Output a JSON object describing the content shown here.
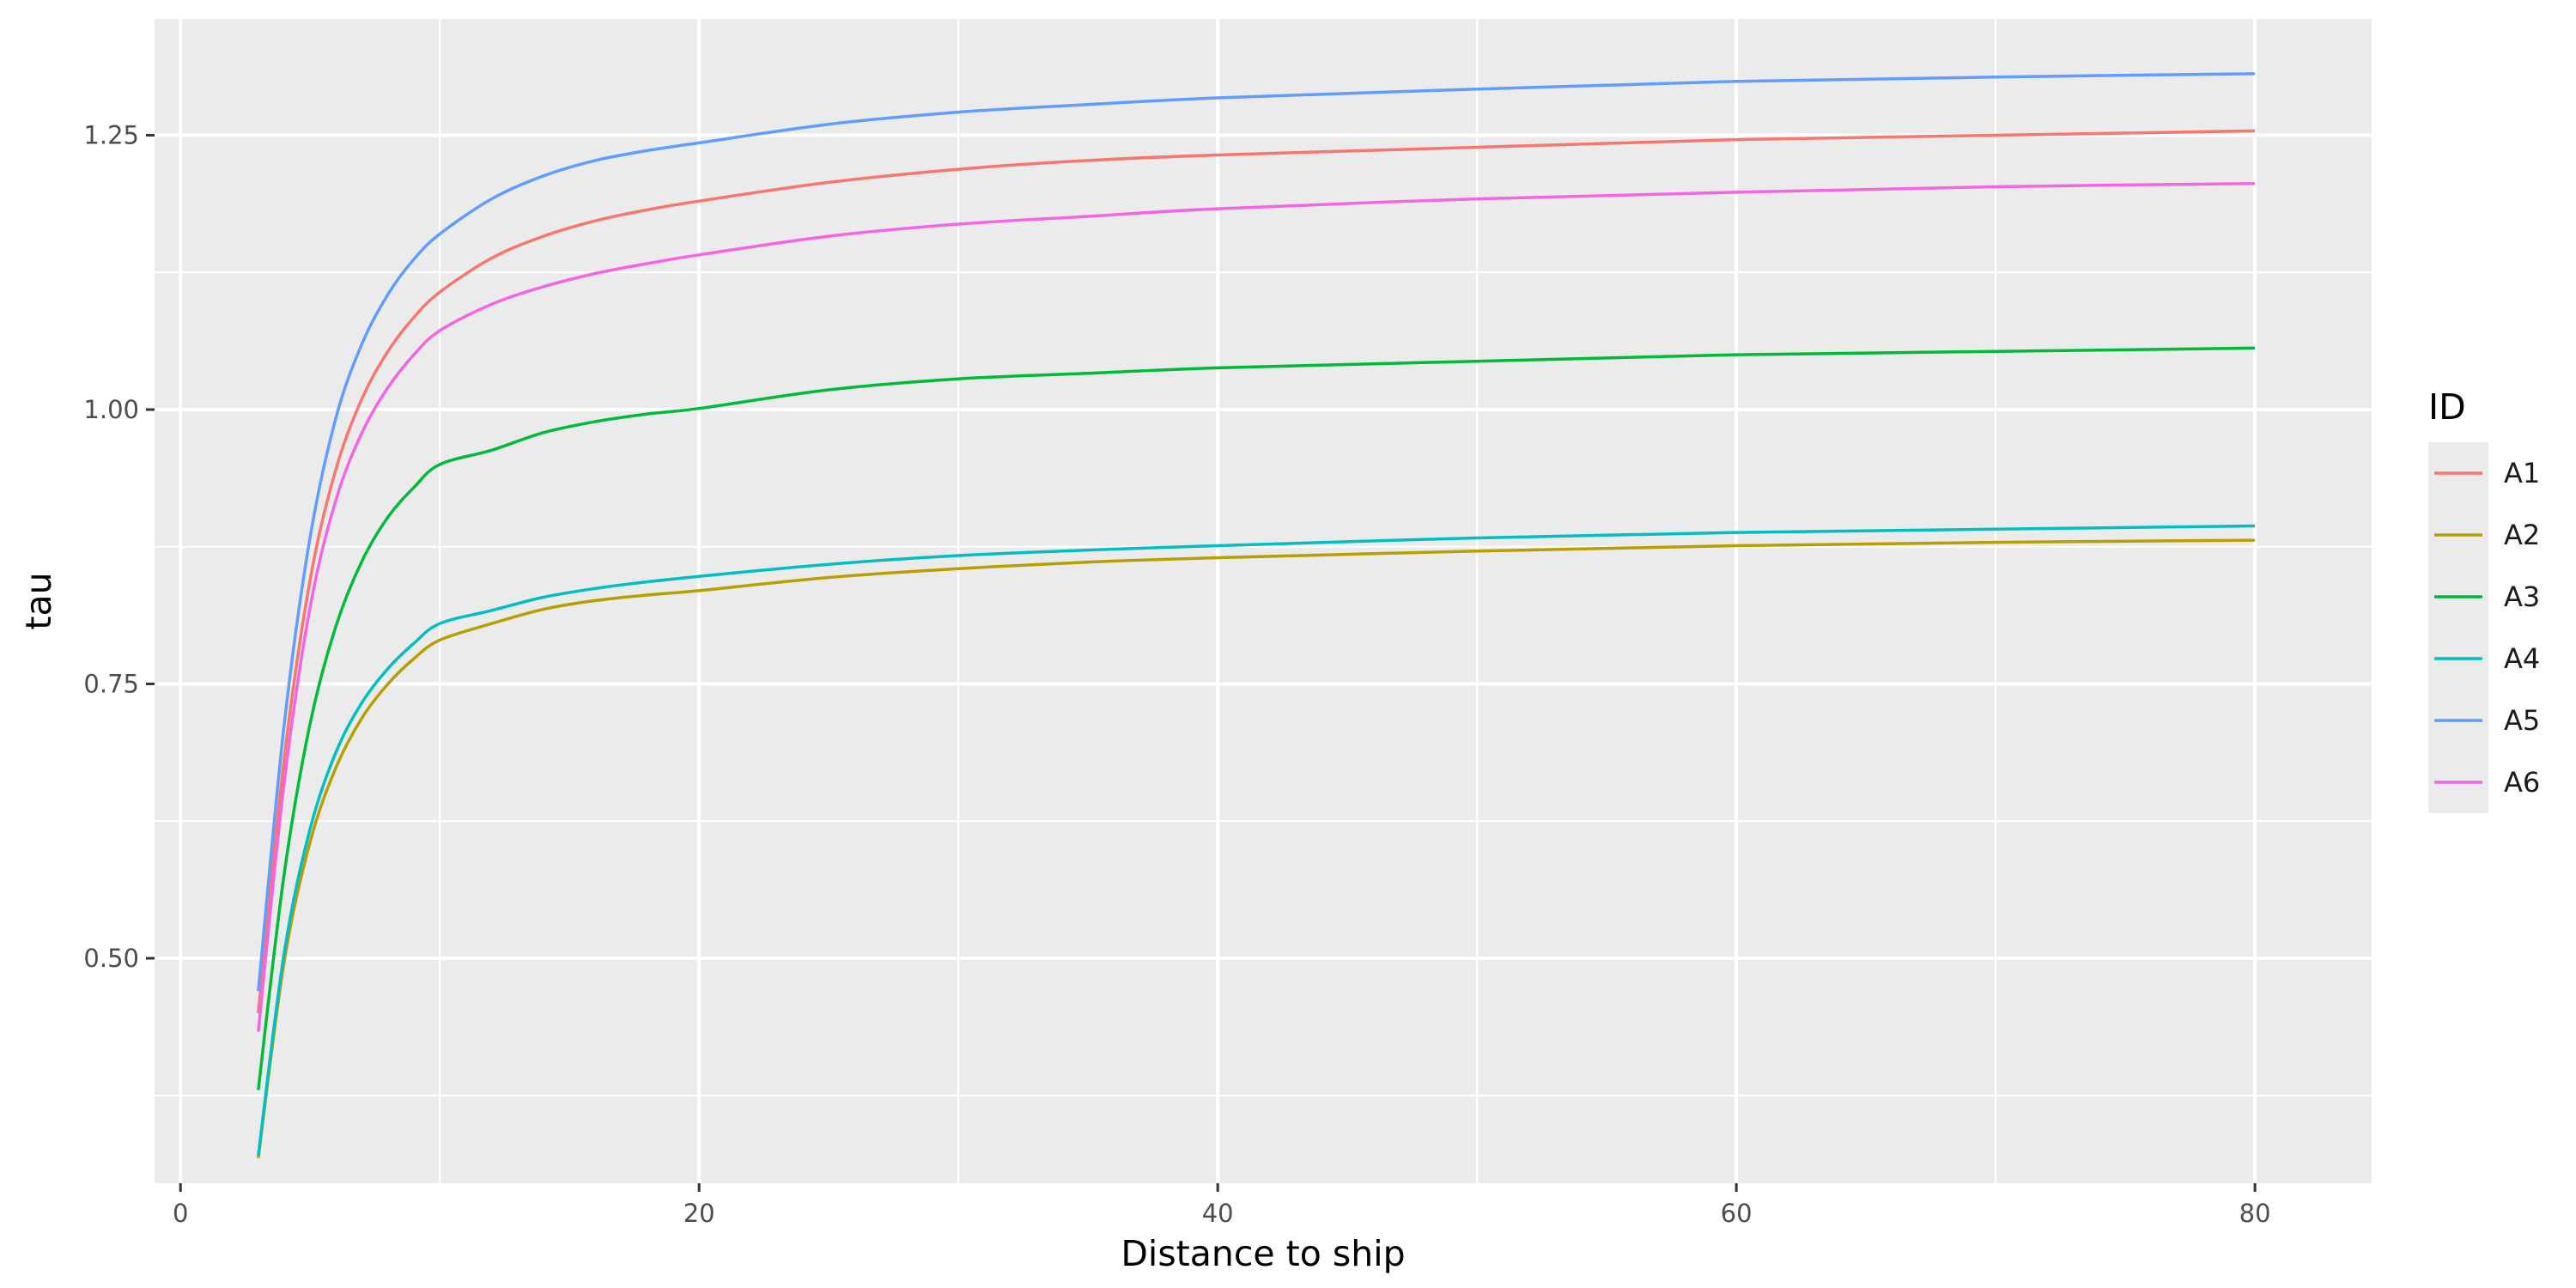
{
  "chart_data": {
    "type": "line",
    "xlabel": "Distance to ship",
    "ylabel": "tau",
    "xlim": [
      -1,
      84.5
    ],
    "ylim": [
      0.295,
      1.356
    ],
    "x_ticks": [
      0,
      20,
      40,
      60,
      80
    ],
    "x_tick_labels": [
      "0",
      "20",
      "40",
      "60",
      "80"
    ],
    "y_ticks": [
      0.5,
      0.75,
      1.0,
      1.25
    ],
    "y_tick_labels": [
      "0.50",
      "0.75",
      "1.00",
      "1.25"
    ],
    "y_minor_ticks": [
      0.375,
      0.625,
      0.875,
      1.125
    ],
    "x_minor_ticks": [
      10,
      30,
      50,
      70
    ],
    "grid": true,
    "panel_background": "#ebebeb",
    "legend": {
      "title": "ID",
      "placement": "right"
    },
    "x": [
      3,
      4,
      5,
      6,
      7,
      8,
      9,
      10,
      12,
      14,
      16,
      18,
      20,
      25,
      30,
      35,
      40,
      50,
      60,
      70,
      80
    ],
    "series": [
      {
        "name": "A1",
        "color": "#F8766D",
        "values": [
          0.45,
          0.682,
          0.845,
          0.946,
          1.01,
          1.053,
          1.084,
          1.107,
          1.138,
          1.158,
          1.172,
          1.182,
          1.19,
          1.207,
          1.219,
          1.227,
          1.232,
          1.239,
          1.246,
          1.25,
          1.254
        ]
      },
      {
        "name": "A2",
        "color": "#B79F00",
        "values": [
          0.318,
          0.497,
          0.606,
          0.674,
          0.719,
          0.75,
          0.773,
          0.79,
          0.805,
          0.818,
          0.826,
          0.831,
          0.835,
          0.847,
          0.855,
          0.861,
          0.865,
          0.871,
          0.876,
          0.879,
          0.881
        ]
      },
      {
        "name": "A3",
        "color": "#00BA38",
        "values": [
          0.38,
          0.577,
          0.714,
          0.803,
          0.862,
          0.902,
          0.929,
          0.95,
          0.963,
          0.979,
          0.989,
          0.996,
          1.001,
          1.018,
          1.028,
          1.033,
          1.038,
          1.044,
          1.05,
          1.053,
          1.056
        ]
      },
      {
        "name": "A4",
        "color": "#00BFC4",
        "values": [
          0.32,
          0.505,
          0.618,
          0.688,
          0.733,
          0.764,
          0.787,
          0.805,
          0.817,
          0.829,
          0.837,
          0.843,
          0.848,
          0.859,
          0.867,
          0.872,
          0.876,
          0.883,
          0.888,
          0.891,
          0.894
        ]
      },
      {
        "name": "A5",
        "color": "#619CFF",
        "values": [
          0.47,
          0.713,
          0.884,
          0.993,
          1.06,
          1.105,
          1.137,
          1.16,
          1.192,
          1.213,
          1.227,
          1.236,
          1.243,
          1.26,
          1.271,
          1.278,
          1.284,
          1.292,
          1.299,
          1.303,
          1.306
        ]
      },
      {
        "name": "A6",
        "color": "#F564E3",
        "values": [
          0.433,
          0.66,
          0.82,
          0.918,
          0.979,
          1.02,
          1.05,
          1.072,
          1.096,
          1.112,
          1.124,
          1.133,
          1.141,
          1.158,
          1.169,
          1.176,
          1.183,
          1.192,
          1.198,
          1.203,
          1.206
        ]
      }
    ]
  }
}
